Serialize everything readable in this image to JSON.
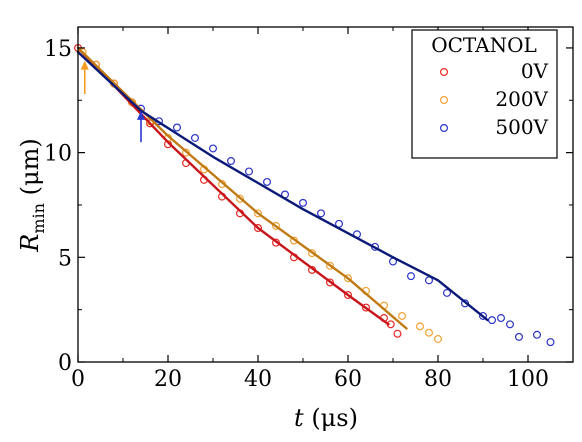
{
  "chart_data": {
    "type": "scatter",
    "title": "",
    "xlabel": {
      "symbol": "t",
      "unit": " (μs)"
    },
    "ylabel": {
      "symbol": "R",
      "subscript": "min",
      "unit": " (μm)"
    },
    "xlim": [
      0,
      110
    ],
    "ylim": [
      0,
      16
    ],
    "xticks": [
      0,
      20,
      40,
      60,
      80,
      100
    ],
    "xtick_labels": [
      "0",
      "20",
      "40",
      "60",
      "80",
      "100"
    ],
    "yticks": [
      0,
      5,
      10,
      15
    ],
    "ytick_labels": [
      "0",
      "5",
      "10",
      "15"
    ],
    "grid": false,
    "legend": {
      "title": "OCTANOL",
      "position": "top-right"
    },
    "series": [
      {
        "name": "0V",
        "marker_color": "#e8261f",
        "fit_color": "#c8151b",
        "points": [
          [
            0,
            15.0
          ],
          [
            4,
            14.2
          ],
          [
            8,
            13.3
          ],
          [
            12,
            12.4
          ],
          [
            16,
            11.4
          ],
          [
            20,
            10.4
          ],
          [
            24,
            9.5
          ],
          [
            28,
            8.7
          ],
          [
            32,
            7.9
          ],
          [
            36,
            7.1
          ],
          [
            40,
            6.4
          ],
          [
            44,
            5.7
          ],
          [
            48,
            5.0
          ],
          [
            52,
            4.4
          ],
          [
            56,
            3.8
          ],
          [
            60,
            3.2
          ],
          [
            64,
            2.6
          ],
          [
            68,
            2.1
          ],
          [
            69.5,
            1.8
          ],
          [
            71,
            1.35
          ]
        ],
        "fit": [
          [
            0,
            15.0
          ],
          [
            20,
            10.5
          ],
          [
            40,
            6.4
          ],
          [
            60,
            3.2
          ],
          [
            69,
            1.8
          ]
        ]
      },
      {
        "name": "200V",
        "marker_color": "#f3a033",
        "fit_color": "#c07a12",
        "points": [
          [
            1,
            14.8
          ],
          [
            4,
            14.2
          ],
          [
            8,
            13.3
          ],
          [
            12,
            12.4
          ],
          [
            16,
            11.5
          ],
          [
            20,
            10.7
          ],
          [
            24,
            10.0
          ],
          [
            28,
            9.2
          ],
          [
            32,
            8.5
          ],
          [
            36,
            7.8
          ],
          [
            40,
            7.1
          ],
          [
            44,
            6.5
          ],
          [
            48,
            5.8
          ],
          [
            52,
            5.2
          ],
          [
            56,
            4.6
          ],
          [
            60,
            4.0
          ],
          [
            64,
            3.4
          ],
          [
            68,
            2.7
          ],
          [
            72,
            2.2
          ],
          [
            76,
            1.7
          ],
          [
            78,
            1.4
          ],
          [
            80,
            1.1
          ]
        ],
        "fit": [
          [
            0,
            15.0
          ],
          [
            20,
            10.8
          ],
          [
            40,
            7.1
          ],
          [
            60,
            4.0
          ],
          [
            73,
            1.6
          ]
        ]
      },
      {
        "name": "500V",
        "marker_color": "#2b33c7",
        "fit_color": "#0b1a78",
        "points": [
          [
            14,
            12.1
          ],
          [
            18,
            11.5
          ],
          [
            22,
            11.2
          ],
          [
            26,
            10.7
          ],
          [
            30,
            10.2
          ],
          [
            34,
            9.6
          ],
          [
            38,
            9.1
          ],
          [
            42,
            8.6
          ],
          [
            46,
            8.0
          ],
          [
            50,
            7.6
          ],
          [
            54,
            7.1
          ],
          [
            58,
            6.6
          ],
          [
            62,
            6.1
          ],
          [
            66,
            5.5
          ],
          [
            70,
            4.8
          ],
          [
            74,
            4.1
          ],
          [
            78,
            3.9
          ],
          [
            82,
            3.3
          ],
          [
            86,
            2.8
          ],
          [
            90,
            2.2
          ],
          [
            92,
            2.0
          ],
          [
            94,
            2.1
          ],
          [
            96,
            1.8
          ],
          [
            98,
            1.2
          ],
          [
            102,
            1.3
          ],
          [
            105,
            0.95
          ]
        ],
        "fit": [
          [
            0,
            14.8
          ],
          [
            14,
            12.0
          ],
          [
            30,
            9.8
          ],
          [
            50,
            7.3
          ],
          [
            70,
            5.0
          ],
          [
            80,
            3.9
          ],
          [
            91,
            2.0
          ]
        ]
      }
    ],
    "annotations": [
      {
        "type": "arrow",
        "color": "#f39c1e",
        "x": 1.5,
        "y_from": 12.8,
        "y_to": 14.3
      },
      {
        "type": "arrow",
        "color": "#2a3ad1",
        "x": 14,
        "y_from": 10.5,
        "y_to": 11.9
      }
    ]
  }
}
